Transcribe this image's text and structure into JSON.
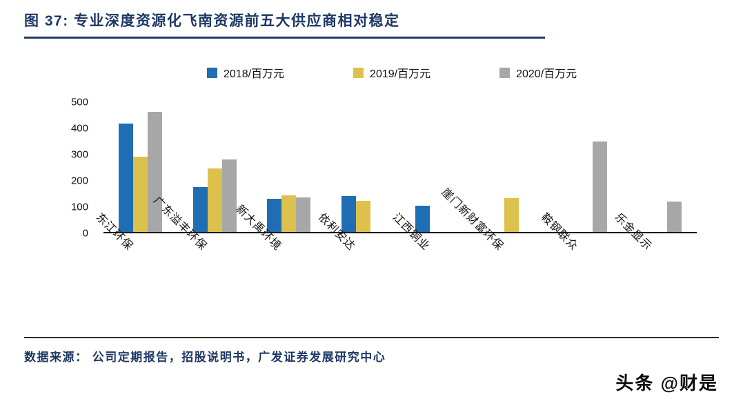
{
  "figure": {
    "title": "图 37:  专业深度资源化飞南资源前五大供应商相对稳定"
  },
  "chart_data": {
    "type": "bar",
    "title": "专业深度资源化飞南资源前五大供应商相对稳定",
    "categories": [
      "东江环保",
      "广东溢丰环保",
      "新大禹环境",
      "依利安达",
      "江西铜业",
      "崖门新财富环保",
      "鞍钢联众",
      "乐金显示"
    ],
    "series": [
      {
        "name": "2018/百万元",
        "color": "#1F6EB4",
        "values": [
          412,
          170,
          125,
          137,
          100,
          0,
          0,
          0
        ]
      },
      {
        "name": "2019/百万元",
        "color": "#DCC14C",
        "values": [
          287,
          241,
          139,
          119,
          0,
          129,
          0,
          0
        ]
      },
      {
        "name": "2020/百万元",
        "color": "#A7A7A7",
        "values": [
          459,
          275,
          132,
          0,
          0,
          0,
          345,
          116
        ]
      }
    ],
    "ylim": [
      0,
      500
    ],
    "yticks": [
      0,
      100,
      200,
      300,
      400,
      500
    ],
    "legend_position": "top",
    "grid": false,
    "xlabel": "",
    "ylabel": ""
  },
  "footer": {
    "source": "数据来源： 公司定期报告，招股说明书，广发证券发展研究中心",
    "watermark": "头条 @财是"
  },
  "colors": {
    "title": "#1F3864",
    "axis": "#1A1A1A",
    "bar_2018": "#1F6EB4",
    "bar_2019": "#DCC14C",
    "bar_2020": "#A7A7A7"
  }
}
